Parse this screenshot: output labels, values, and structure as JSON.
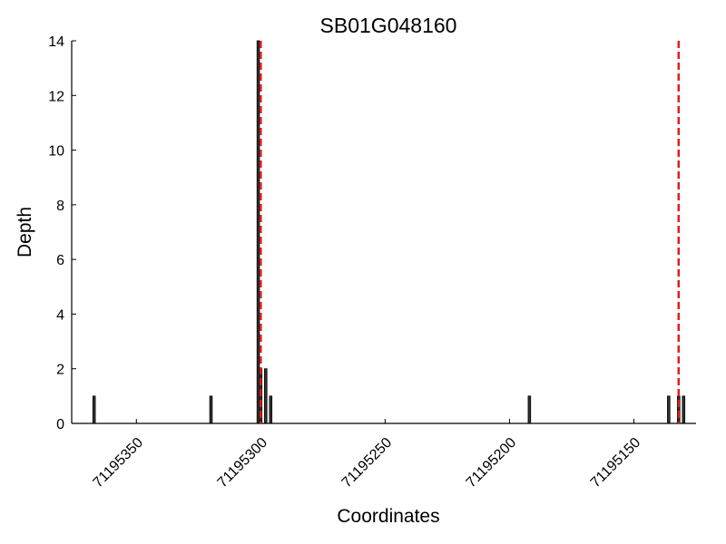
{
  "chart_data": {
    "type": "bar",
    "title": "SB01G048160",
    "x_label": "Coordinates",
    "y_label": "Depth",
    "x": [
      71195367,
      71195320,
      71195301,
      71195300,
      71195298,
      71195296,
      71195192,
      71195136,
      71195132,
      71195130
    ],
    "values": [
      1,
      1,
      14,
      2,
      2,
      1,
      1,
      1,
      1,
      1
    ],
    "color": "#333333",
    "edge_color": "#000000",
    "vlines": [
      71195300,
      71195132
    ],
    "vline_color": "#e41a1c",
    "xlim": [
      71195376,
      71195125
    ],
    "xticks": [
      71195350,
      71195300,
      71195250,
      71195200,
      71195150
    ],
    "ylim": [
      0,
      14
    ],
    "yticks": [
      0,
      2,
      4,
      6,
      8,
      10,
      12,
      14
    ]
  }
}
